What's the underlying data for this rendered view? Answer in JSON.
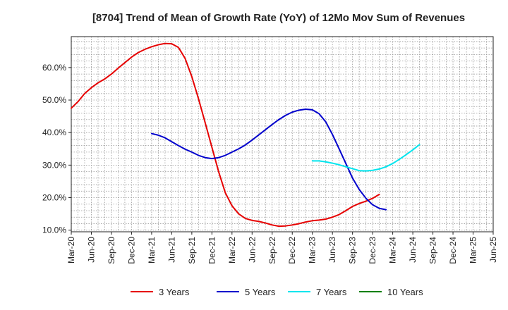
{
  "chart_data": {
    "type": "line",
    "title": "[8704]  Trend of Mean of Growth Rate (YoY) of 12Mo Mov Sum of Revenues",
    "xlabel": "",
    "ylabel": "",
    "ylim": [
      9.5,
      69.5
    ],
    "yticks": [
      10,
      20,
      30,
      40,
      50,
      60
    ],
    "ytick_labels": [
      "10.0%",
      "20.0%",
      "30.0%",
      "40.0%",
      "50.0%",
      "60.0%"
    ],
    "x_start_index": 0,
    "x_end_index": 63,
    "xtick_labels": [
      "Mar-20",
      "Jun-20",
      "Sep-20",
      "Dec-20",
      "Mar-21",
      "Jun-21",
      "Sep-21",
      "Dec-21",
      "Mar-22",
      "Jun-22",
      "Sep-22",
      "Dec-22",
      "Mar-23",
      "Jun-23",
      "Sep-23",
      "Dec-23",
      "Mar-24",
      "Jun-24",
      "Sep-24",
      "Dec-24",
      "Mar-25",
      "Jun-25"
    ],
    "grid": true,
    "legend_position": "bottom",
    "series": [
      {
        "name": "3 Years",
        "color": "#e60000",
        "start_index": 0,
        "values": [
          47.5,
          49.5,
          52,
          53.8,
          55.3,
          56.5,
          58,
          59.8,
          61.5,
          63.2,
          64.6,
          65.6,
          66.4,
          67,
          67.4,
          67.3,
          66.2,
          62.8,
          57.2,
          50.4,
          43,
          35.5,
          28,
          21.5,
          17.5,
          15,
          13.6,
          13,
          12.7,
          12.2,
          11.6,
          11.2,
          11.3,
          11.6,
          12,
          12.5,
          12.9,
          13.1,
          13.4,
          14,
          14.8,
          16,
          17.3,
          18.2,
          18.9,
          19.8,
          21
        ]
      },
      {
        "name": "5 Years",
        "color": "#0000cc",
        "start_index": 12,
        "values": [
          39.7,
          39.2,
          38.4,
          37.2,
          36,
          34.9,
          34,
          33,
          32.3,
          32,
          32.3,
          33,
          34,
          35,
          36.2,
          37.7,
          39.3,
          40.9,
          42.5,
          44,
          45.3,
          46.3,
          46.9,
          47.2,
          47,
          45.8,
          43.3,
          39.4,
          35,
          30.5,
          26,
          22.5,
          19.8,
          17.8,
          16.7,
          16.3
        ]
      },
      {
        "name": "7 Years",
        "color": "#00e5ee",
        "start_index": 36,
        "values": [
          31.3,
          31.3,
          31,
          30.6,
          30.1,
          29.5,
          28.9,
          28.3,
          28.2,
          28.4,
          28.8,
          29.5,
          30.5,
          31.8,
          33.2,
          34.7,
          36.3
        ]
      },
      {
        "name": "10 Years",
        "color": "#008000",
        "start_index": 0,
        "values": []
      }
    ]
  }
}
